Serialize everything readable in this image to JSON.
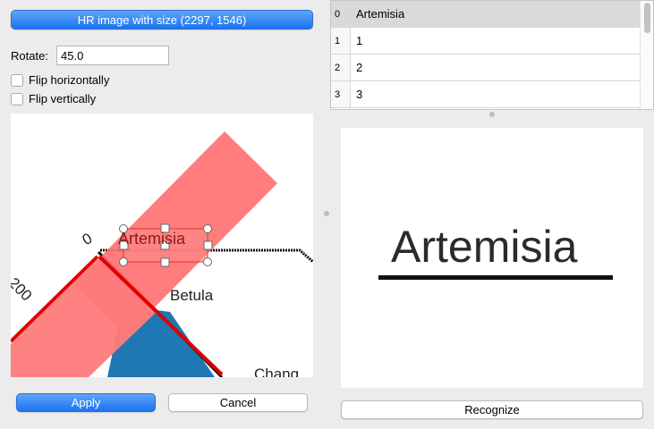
{
  "header": {
    "image_button_label": "HR image with size (2297, 1546)"
  },
  "rotate": {
    "label": "Rotate:",
    "value": "45.0"
  },
  "flip": {
    "horizontal_label": "Flip horizontally",
    "vertical_label": "Flip vertically"
  },
  "canvas": {
    "selection_text": "Artemisia",
    "text_betula": "Betula",
    "text_zero": "0",
    "text_200": "200",
    "text_partial": "Chang"
  },
  "actions": {
    "apply_label": "Apply",
    "cancel_label": "Cancel"
  },
  "table": {
    "rows": [
      {
        "index": "0",
        "value": "Artemisia"
      },
      {
        "index": "1",
        "value": "1"
      },
      {
        "index": "2",
        "value": "2"
      },
      {
        "index": "3",
        "value": "3"
      }
    ]
  },
  "preview": {
    "text": "Artemisia"
  },
  "recognize": {
    "label": "Recognize"
  },
  "colors": {
    "accent": "#1a73f0",
    "overlay": "#ff7b7b",
    "line_red": "#e00000",
    "water": "#1f77b4"
  }
}
